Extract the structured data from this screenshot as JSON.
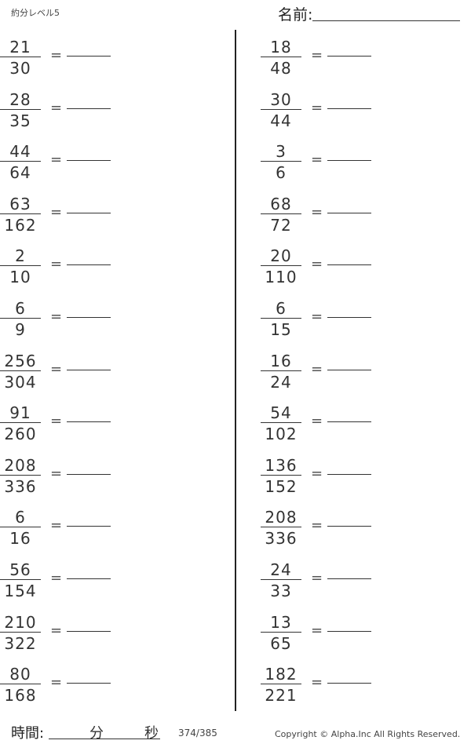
{
  "header": {
    "title": "約分レベル5",
    "name_label": "名前:"
  },
  "left_problems": [
    {
      "numerator": "21",
      "denominator": "30"
    },
    {
      "numerator": "28",
      "denominator": "35"
    },
    {
      "numerator": "44",
      "denominator": "64"
    },
    {
      "numerator": "63",
      "denominator": "162"
    },
    {
      "numerator": "2",
      "denominator": "10"
    },
    {
      "numerator": "6",
      "denominator": "9"
    },
    {
      "numerator": "256",
      "denominator": "304"
    },
    {
      "numerator": "91",
      "denominator": "260"
    },
    {
      "numerator": "208",
      "denominator": "336"
    },
    {
      "numerator": "6",
      "denominator": "16"
    },
    {
      "numerator": "56",
      "denominator": "154"
    },
    {
      "numerator": "210",
      "denominator": "322"
    },
    {
      "numerator": "80",
      "denominator": "168"
    }
  ],
  "right_problems": [
    {
      "numerator": "18",
      "denominator": "48"
    },
    {
      "numerator": "30",
      "denominator": "44"
    },
    {
      "numerator": "3",
      "denominator": "6"
    },
    {
      "numerator": "68",
      "denominator": "72"
    },
    {
      "numerator": "20",
      "denominator": "110"
    },
    {
      "numerator": "6",
      "denominator": "15"
    },
    {
      "numerator": "16",
      "denominator": "24"
    },
    {
      "numerator": "54",
      "denominator": "102"
    },
    {
      "numerator": "136",
      "denominator": "152"
    },
    {
      "numerator": "208",
      "denominator": "336"
    },
    {
      "numerator": "24",
      "denominator": "33"
    },
    {
      "numerator": "13",
      "denominator": "65"
    },
    {
      "numerator": "182",
      "denominator": "221"
    }
  ],
  "equals": "=",
  "footer": {
    "time_label": "時間:",
    "minutes": "分",
    "seconds": "秒",
    "page": "374/385",
    "copyright": "Copyright ©  Alpha.Inc All Rights Reserved."
  }
}
